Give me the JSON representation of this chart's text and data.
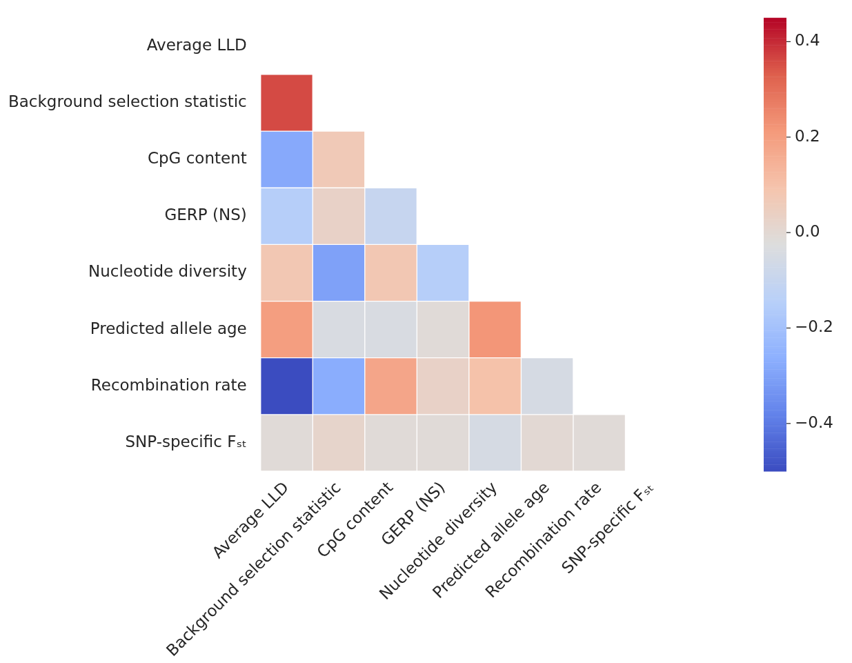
{
  "chart_data": {
    "type": "heatmap",
    "categories": [
      "Average LLD",
      "Background selection statistic",
      "CpG content",
      "GERP (NS)",
      "Nucleotide diversity",
      "Predicted allele age",
      "Recombination rate",
      "SNP-specific Fₛₜ"
    ],
    "y_categories": [
      "Average LLD",
      "Background selection statistic",
      "CpG content",
      "GERP (NS)",
      "Nucleotide diversity",
      "Predicted allele age",
      "Recombination rate",
      "SNP-specific Fₛₜ"
    ],
    "cells": [
      [
        null,
        null,
        null,
        null,
        null,
        null,
        null,
        null
      ],
      [
        0.36,
        null,
        null,
        null,
        null,
        null,
        null,
        null
      ],
      [
        -0.28,
        0.07,
        null,
        null,
        null,
        null,
        null,
        null
      ],
      [
        -0.15,
        0.03,
        -0.1,
        null,
        null,
        null,
        null,
        null
      ],
      [
        0.08,
        -0.3,
        0.08,
        -0.15,
        null,
        null,
        null,
        null
      ],
      [
        0.2,
        -0.04,
        -0.04,
        -0.01,
        0.22,
        null,
        null,
        null
      ],
      [
        -0.5,
        -0.27,
        0.18,
        0.03,
        0.1,
        -0.05,
        null,
        null
      ],
      [
        -0.01,
        0.02,
        -0.01,
        -0.01,
        -0.05,
        0.0,
        -0.01,
        null
      ]
    ],
    "clim": [
      -0.5,
      0.45
    ],
    "cticks": [
      {
        "value": 0.4,
        "label": "0.4"
      },
      {
        "value": 0.2,
        "label": "0.2"
      },
      {
        "value": 0.0,
        "label": "0.0"
      },
      {
        "value": -0.2,
        "label": "−0.2"
      },
      {
        "value": -0.4,
        "label": "−0.4"
      }
    ]
  }
}
